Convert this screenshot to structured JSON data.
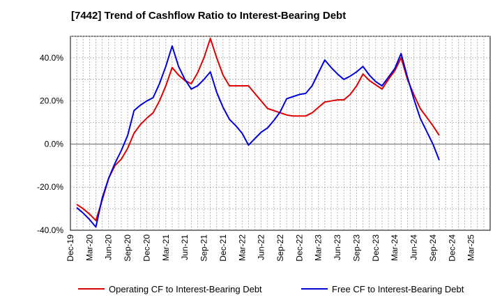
{
  "chart_data": {
    "type": "line",
    "title": "[7442]  Trend of Cashflow Ratio to Interest-Bearing Debt",
    "xlabel": "",
    "ylabel": "",
    "ylim": [
      -40,
      50
    ],
    "y_ticks": [
      -40,
      -20,
      0,
      20,
      40
    ],
    "y_tick_labels": [
      "-40.0%",
      "-20.0%",
      "0.0%",
      "20.0%",
      "40.0%"
    ],
    "x_tick_labels": [
      "Dec-19",
      "Mar-20",
      "Jun-20",
      "Sep-20",
      "Dec-20",
      "Mar-21",
      "Jun-21",
      "Sep-21",
      "Dec-21",
      "Mar-22",
      "Jun-22",
      "Sep-22",
      "Dec-22",
      "Mar-23",
      "Jun-23",
      "Sep-23",
      "Dec-23",
      "Mar-24",
      "Jun-24",
      "Sep-24",
      "Dec-24",
      "Mar-25"
    ],
    "grid": true,
    "legend_position": "bottom",
    "x": [
      "Dec-19",
      "Jan-20",
      "Feb-20",
      "Mar-20",
      "Apr-20",
      "May-20",
      "Jun-20",
      "Jul-20",
      "Aug-20",
      "Sep-20",
      "Oct-20",
      "Nov-20",
      "Dec-20",
      "Jan-21",
      "Feb-21",
      "Mar-21",
      "Apr-21",
      "May-21",
      "Jun-21",
      "Jul-21",
      "Aug-21",
      "Sep-21",
      "Oct-21",
      "Nov-21",
      "Dec-21",
      "Jan-22",
      "Feb-22",
      "Mar-22",
      "Apr-22",
      "May-22",
      "Jun-22",
      "Jul-22",
      "Aug-22",
      "Sep-22",
      "Oct-22",
      "Nov-22",
      "Dec-22",
      "Jan-23",
      "Feb-23",
      "Mar-23",
      "Apr-23",
      "May-23",
      "Jun-23",
      "Jul-23",
      "Aug-23",
      "Sep-23",
      "Oct-23",
      "Nov-23",
      "Dec-23",
      "Jan-24",
      "Feb-24",
      "Mar-24",
      "Apr-24",
      "May-24",
      "Jun-24",
      "Jul-24",
      "Aug-24",
      "Sep-24"
    ],
    "series": [
      {
        "name": "Operating CF to Interest-Bearing Debt",
        "color": "#e00000",
        "values": [
          -28,
          -30,
          -32.5,
          -35.5,
          -26,
          -16,
          -10,
          -7,
          -2,
          5,
          9,
          12,
          14.5,
          20,
          27,
          35.5,
          32,
          29.5,
          28,
          33,
          40,
          49,
          40,
          32,
          27,
          27,
          27,
          27,
          23.5,
          20,
          16.5,
          15.5,
          14.5,
          13.5,
          13,
          13,
          13,
          14.5,
          17,
          19.5,
          20,
          20.5,
          20.5,
          23,
          27,
          32.5,
          29.5,
          27.5,
          25.5,
          30,
          34,
          40,
          30,
          23,
          16.5,
          12.5,
          8.5,
          4
        ]
      },
      {
        "name": "Free CF to Interest-Bearing Debt",
        "color": "#0000dd",
        "values": [
          -29.5,
          -32,
          -35,
          -38.5,
          -25,
          -16,
          -9,
          -3,
          4,
          15.5,
          18,
          20,
          21.5,
          28,
          36,
          45.5,
          36,
          30,
          25.5,
          27,
          30,
          33.5,
          24,
          17,
          11.5,
          8.5,
          5,
          -0.5,
          2.5,
          5.5,
          7.5,
          11,
          15,
          21,
          22,
          23,
          23.5,
          27,
          33,
          39,
          35.5,
          32.5,
          30,
          31.5,
          33.5,
          36,
          32,
          29,
          27,
          31,
          35,
          42,
          31,
          21,
          12,
          6,
          0,
          -7.5
        ]
      }
    ]
  }
}
